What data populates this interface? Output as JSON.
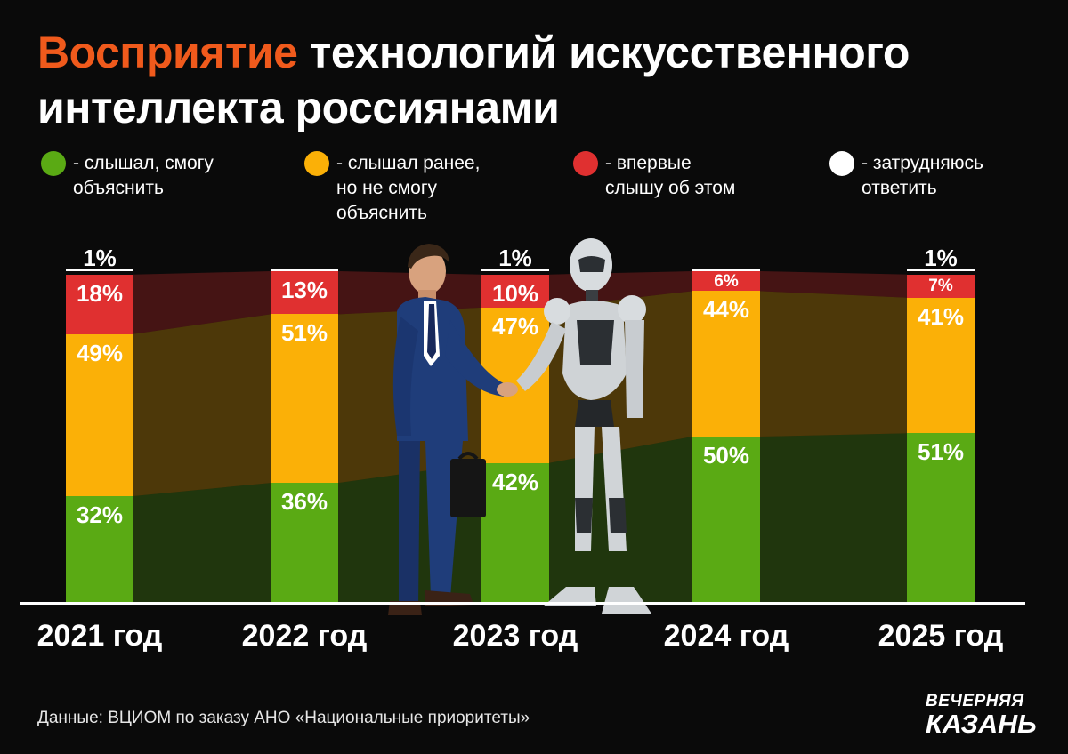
{
  "title": {
    "accent": "Восприятие",
    "rest": " технологий искусственного интеллекта россиянами"
  },
  "legend": [
    {
      "color": "#5aaa14",
      "text": "- слышал, смогу\nобъяснить"
    },
    {
      "color": "#fbb007",
      "text": "- слышал ранее,\nно не смогу\nобъяснить"
    },
    {
      "color": "#e03030",
      "text": "- впервые\nслышу об этом"
    },
    {
      "color": "#ffffff",
      "text": "- затрудняюсь\nответить"
    }
  ],
  "colors": {
    "green": "#5aaa14",
    "orange": "#fbb007",
    "red": "#e03030",
    "white": "#ffffff",
    "accent": "#f05a1c"
  },
  "chart_data": {
    "type": "bar",
    "stacked": true,
    "categories": [
      "2021 год",
      "2022 год",
      "2023 год",
      "2024 год",
      "2025 год"
    ],
    "series": [
      {
        "name": "слышал, смогу объяснить",
        "values": [
          32,
          36,
          42,
          50,
          51
        ]
      },
      {
        "name": "слышал ранее, но не смогу объяснить",
        "values": [
          49,
          51,
          47,
          44,
          41
        ]
      },
      {
        "name": "впервые слышу об этом",
        "values": [
          18,
          13,
          10,
          6,
          7
        ]
      },
      {
        "name": "затрудняюсь ответить",
        "values": [
          1,
          0,
          1,
          0,
          1
        ]
      }
    ],
    "value_labels": [
      [
        "32%",
        "49%",
        "18%",
        "1%"
      ],
      [
        "36%",
        "51%",
        "13%",
        ""
      ],
      [
        "42%",
        "47%",
        "10%",
        "1%"
      ],
      [
        "50%",
        "44%",
        "6%",
        ""
      ],
      [
        "51%",
        "41%",
        "7%",
        "1%"
      ]
    ],
    "ylim": [
      0,
      100
    ],
    "xlabel": "",
    "ylabel": ""
  },
  "illustration": {
    "left_figure": "businessman-with-briefcase",
    "right_figure": "humanoid-robot",
    "action": "handshake"
  },
  "source": "Данные: ВЦИОМ по заказу АНО «Национальные приоритеты»",
  "logo": {
    "line1": "ВЕЧЕРНЯЯ",
    "line2": "КАЗАНЬ"
  }
}
